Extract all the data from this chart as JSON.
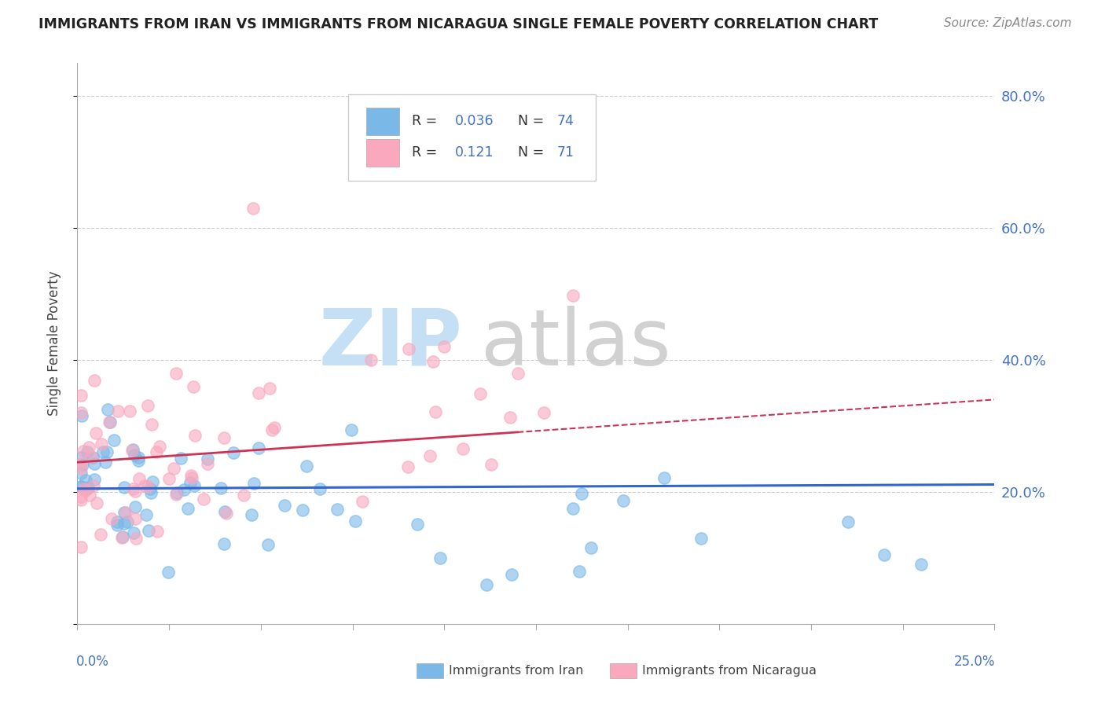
{
  "title": "IMMIGRANTS FROM IRAN VS IMMIGRANTS FROM NICARAGUA SINGLE FEMALE POVERTY CORRELATION CHART",
  "source": "Source: ZipAtlas.com",
  "ylabel": "Single Female Poverty",
  "xlim": [
    0.0,
    0.25
  ],
  "ylim": [
    0.0,
    0.85
  ],
  "yticks": [
    0.0,
    0.2,
    0.4,
    0.6,
    0.8
  ],
  "ytick_labels": [
    "",
    "20.0%",
    "40.0%",
    "60.0%",
    "80.0%"
  ],
  "legend_iran_R": "0.036",
  "legend_iran_N": "74",
  "legend_nicaragua_R": "0.121",
  "legend_nicaragua_N": "71",
  "iran_color": "#7ab8e8",
  "nicaragua_color": "#f9a8be",
  "iran_line_color": "#3366cc",
  "nicaragua_line_color": "#cc3355",
  "iran_alpha": 0.6,
  "nicaragua_alpha": 0.6,
  "dot_size": 120,
  "iran_intercept": 0.205,
  "iran_slope": 0.025,
  "nicaragua_intercept": 0.245,
  "nicaragua_slope": 0.38,
  "watermark_zip_color": "#c5dff5",
  "watermark_atlas_color": "#cccccc"
}
